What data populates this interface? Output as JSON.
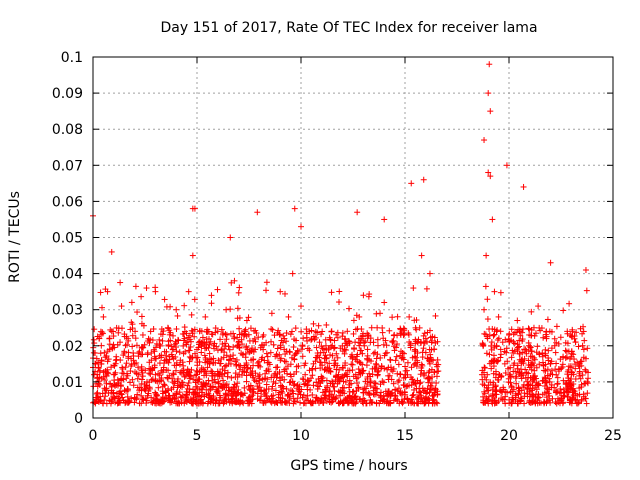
{
  "chart_data": {
    "type": "scatter",
    "title": "Day 151 of 2017, Rate Of TEC Index for receiver lama",
    "xlabel": "GPS time / hours",
    "ylabel": "ROTI / TECUs",
    "xlim": [
      0,
      25
    ],
    "ylim": [
      0,
      0.1
    ],
    "x_ticks": [
      0,
      5,
      10,
      15,
      20,
      25
    ],
    "y_ticks": [
      0,
      0.01,
      0.02,
      0.03,
      0.04,
      0.05,
      0.06,
      0.07,
      0.08,
      0.09,
      0.1
    ],
    "x_tick_labels": [
      "0",
      "5",
      "10",
      "15",
      "20",
      "25"
    ],
    "y_tick_labels": [
      "0",
      "0.01",
      "0.02",
      "0.03",
      "0.04",
      "0.05",
      "0.06",
      "0.07",
      "0.08",
      "0.09",
      "0.1"
    ],
    "grid": true,
    "marker": "plus",
    "color": "#ff0000",
    "series": [
      {
        "x": [
          0.0,
          0.05,
          0.1,
          0.2,
          0.3,
          0.4,
          0.5,
          0.6,
          0.7,
          0.8,
          0.9,
          1.0,
          1.1,
          1.2,
          1.3,
          1.4,
          1.5,
          1.6,
          1.7,
          1.8,
          1.9,
          2.0,
          2.2,
          2.4,
          2.6,
          2.8,
          3.0,
          3.2,
          3.4,
          3.6,
          3.8,
          4.0,
          4.2,
          4.4,
          4.6,
          4.8,
          4.9,
          5.0,
          5.2,
          5.4,
          5.6,
          5.8,
          6.0,
          6.2,
          6.4,
          6.6,
          6.8,
          7.0,
          7.2,
          7.4,
          7.6,
          7.8,
          8.0,
          8.2,
          8.4,
          8.6,
          8.8,
          9.0,
          9.2,
          9.4,
          9.6,
          9.8,
          10.0,
          10.2,
          10.4,
          10.6,
          10.8,
          11.0,
          11.2,
          11.4,
          11.6,
          11.8,
          12.0,
          12.2,
          12.4,
          12.6,
          12.8,
          13.0,
          13.2,
          13.4,
          13.6,
          13.8,
          14.0,
          14.2,
          14.4,
          14.6,
          14.8,
          15.0,
          15.2,
          15.4,
          15.6,
          15.8,
          16.0,
          16.2,
          16.4,
          16.6,
          18.7,
          18.8,
          18.9,
          19.0,
          19.05,
          19.1,
          19.2,
          19.3,
          19.4,
          19.5,
          19.6,
          19.7,
          19.8,
          20.0,
          20.2,
          20.4,
          20.6,
          20.8,
          21.0,
          21.2,
          21.4,
          21.6,
          21.8,
          22.0,
          22.2,
          22.4,
          22.6,
          22.8,
          23.0,
          23.2,
          23.4,
          23.6,
          23.8,
          0.0,
          0.9,
          3.0,
          4.8,
          6.6,
          7.9,
          9.7,
          10.0,
          12.7,
          14.0,
          15.3,
          15.9,
          16.2,
          18.8,
          19.0,
          19.1,
          19.9,
          20.7,
          22.0,
          23.7
        ],
        "y": [
          0.014,
          0.012,
          0.018,
          0.011,
          0.022,
          0.015,
          0.028,
          0.013,
          0.035,
          0.019,
          0.024,
          0.012,
          0.016,
          0.009,
          0.021,
          0.014,
          0.018,
          0.011,
          0.017,
          0.013,
          0.026,
          0.015,
          0.012,
          0.023,
          0.01,
          0.018,
          0.012,
          0.02,
          0.014,
          0.025,
          0.011,
          0.03,
          0.016,
          0.022,
          0.035,
          0.045,
          0.058,
          0.019,
          0.013,
          0.028,
          0.015,
          0.02,
          0.024,
          0.012,
          0.03,
          0.017,
          0.038,
          0.021,
          0.013,
          0.027,
          0.016,
          0.019,
          0.011,
          0.023,
          0.017,
          0.029,
          0.014,
          0.035,
          0.022,
          0.028,
          0.04,
          0.018,
          0.031,
          0.012,
          0.024,
          0.015,
          0.018,
          0.011,
          0.02,
          0.013,
          0.016,
          0.012,
          0.014,
          0.012,
          0.017,
          0.021,
          0.028,
          0.034,
          0.019,
          0.025,
          0.015,
          0.029,
          0.032,
          0.014,
          0.021,
          0.017,
          0.023,
          0.012,
          0.028,
          0.036,
          0.018,
          0.045,
          0.022,
          0.015,
          0.019,
          0.013,
          0.012,
          0.03,
          0.045,
          0.068,
          0.098,
          0.085,
          0.055,
          0.035,
          0.024,
          0.028,
          0.019,
          0.021,
          0.015,
          0.023,
          0.018,
          0.027,
          0.016,
          0.019,
          0.014,
          0.025,
          0.031,
          0.018,
          0.022,
          0.015,
          0.02,
          0.013,
          0.017,
          0.024,
          0.012,
          0.021,
          0.015,
          0.019,
          0.011,
          0.056,
          0.046,
          0.035,
          0.058,
          0.05,
          0.057,
          0.058,
          0.053,
          0.057,
          0.055,
          0.065,
          0.066,
          0.04,
          0.077,
          0.09,
          0.067,
          0.07,
          0.064,
          0.043,
          0.041
        ],
        "band": {
          "segments": [
            [
              0.0,
              16.6
            ],
            [
              18.7,
              23.8
            ]
          ],
          "y_min": 0.004,
          "y_max": 0.025
        }
      }
    ]
  }
}
